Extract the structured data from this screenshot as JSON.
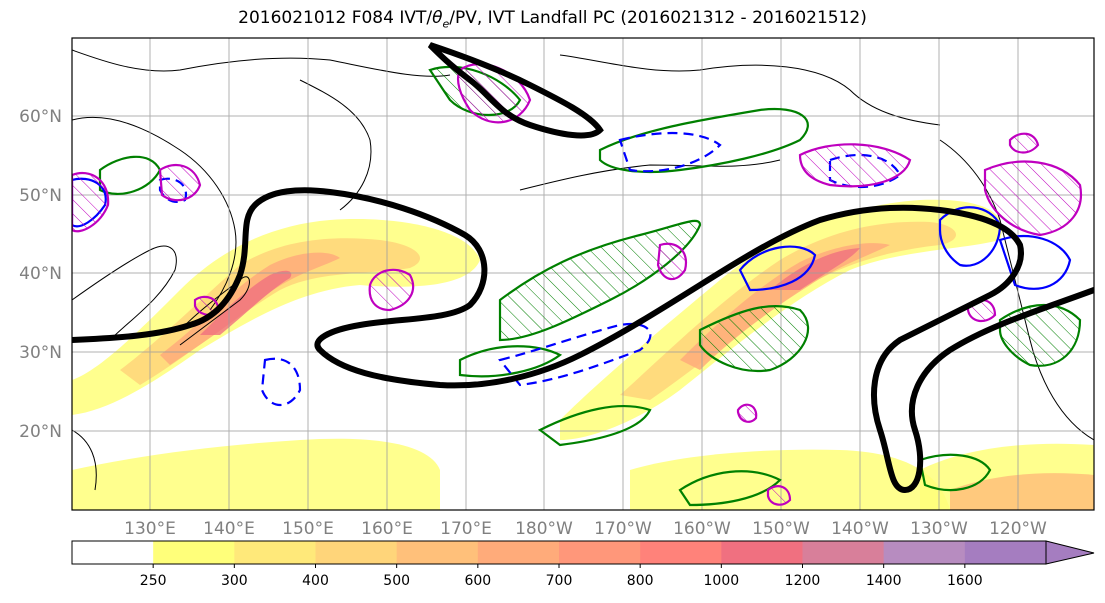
{
  "title": {
    "prefix": "2016021012 F084 IVT/",
    "theta": "θ",
    "theta_sub": "e",
    "suffix": "/PV, IVT Landfall PC (2016021312 - 2016021512)"
  },
  "map": {
    "lat_labels": [
      "60°N",
      "50°N",
      "40°N",
      "30°N",
      "20°N"
    ],
    "lon_labels": [
      "130°E",
      "140°E",
      "150°E",
      "160°E",
      "170°E",
      "180°W",
      "170°W",
      "160°W",
      "150°W",
      "140°W",
      "130°W",
      "120°W"
    ],
    "colors": {
      "pv_contour": "#000000",
      "coast": "#000000",
      "theta_positive": "#008000",
      "theta_negative": "#0000ff",
      "pv_hatch": "#bf00bf",
      "grid": "#9e9e9e"
    }
  },
  "colorbar": {
    "ticks": [
      "250",
      "300",
      "400",
      "500",
      "600",
      "700",
      "800",
      "1000",
      "1200",
      "1400",
      "1600"
    ],
    "colors": [
      "#ffffff",
      "#ffff7a",
      "#ffe97a",
      "#ffd57a",
      "#ffc07a",
      "#ffab7a",
      "#ff977a",
      "#ff827a",
      "#f07080",
      "#d87f9a",
      "#b78cc0",
      "#a57dc0"
    ]
  }
}
